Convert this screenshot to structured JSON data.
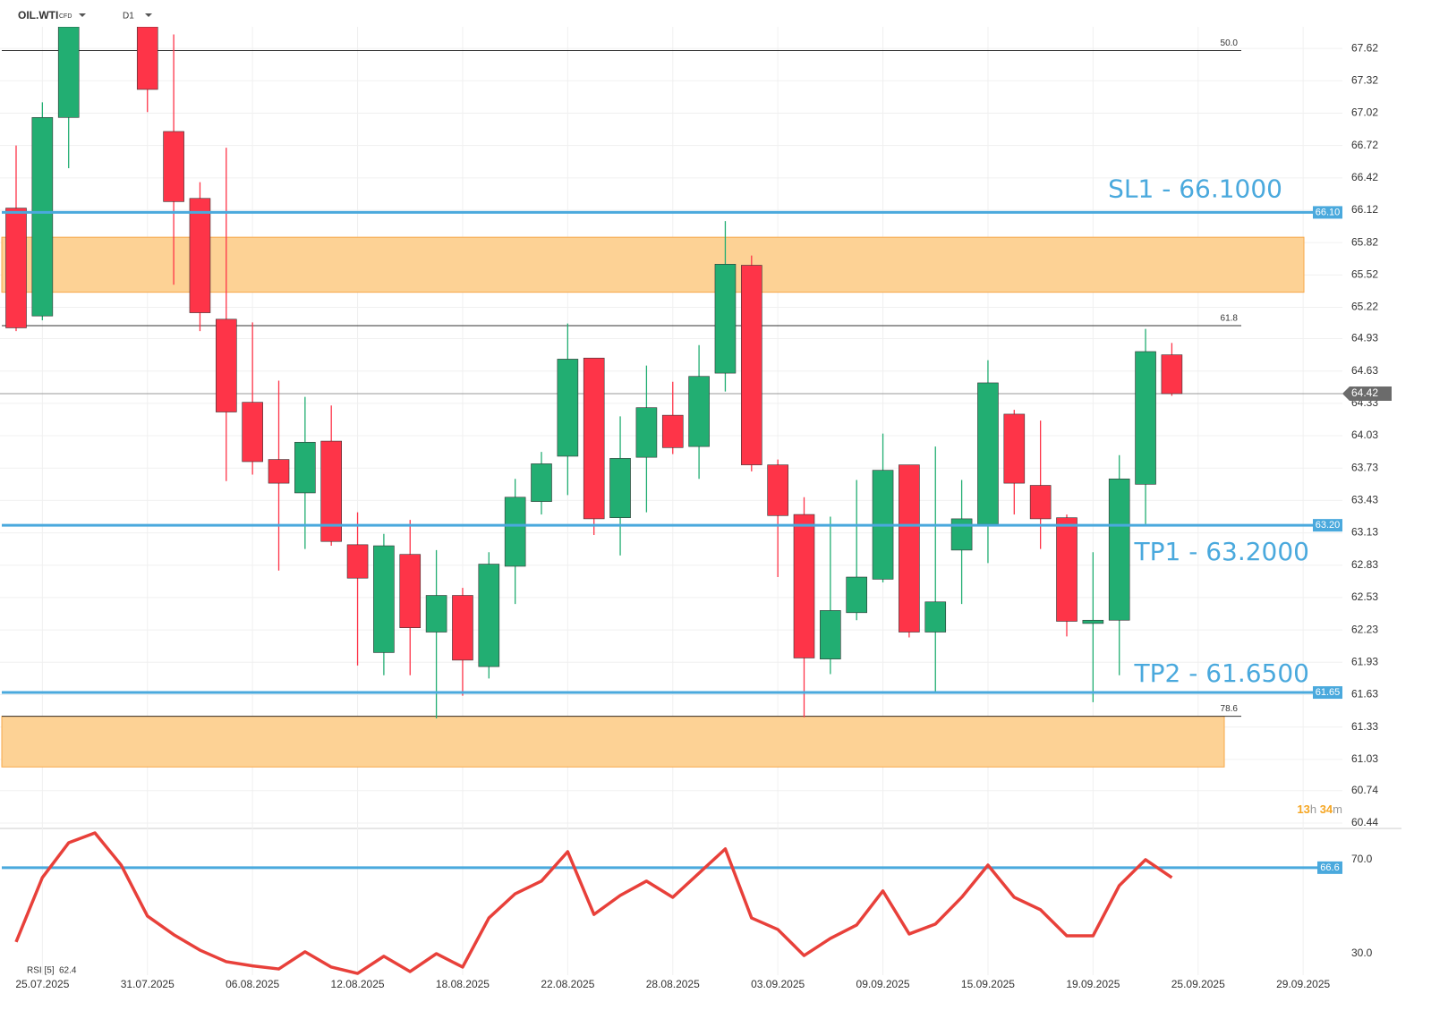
{
  "chart_data": {
    "type": "candlestick",
    "symbol": "OIL.WTI",
    "instrument": "CFD",
    "timeframe": "D1",
    "categories": [
      null,
      "25.07.2025",
      null,
      null,
      null,
      "31.07.2025",
      null,
      null,
      null,
      "06.08.2025",
      null,
      null,
      null,
      "12.08.2025",
      null,
      null,
      null,
      "18.08.2025",
      null,
      null,
      null,
      "22.08.2025",
      null,
      null,
      null,
      "28.08.2025",
      null,
      null,
      null,
      "03.09.2025",
      null,
      null,
      null,
      "09.09.2025",
      null,
      null,
      null,
      "15.09.2025",
      null,
      null,
      null,
      "19.09.2025",
      null,
      null,
      null,
      "25.09.2025",
      null,
      null,
      null,
      "29.09.2025"
    ],
    "open": [
      66.14,
      65.14,
      66.98,
      null,
      null,
      67.82,
      66.85,
      66.23,
      65.11,
      64.34,
      63.81,
      63.5,
      63.98,
      63.02,
      62.02,
      62.93,
      62.21,
      62.55,
      61.89,
      62.82,
      63.42,
      63.84,
      64.75,
      63.27,
      63.83,
      64.22,
      63.93,
      64.61,
      65.61,
      63.76,
      63.3,
      61.96,
      62.39,
      62.7,
      63.76,
      62.21,
      62.97,
      63.21,
      64.23,
      63.57,
      63.27,
      62.29,
      62.32,
      63.58,
      64.78,
      null,
      null,
      null,
      null,
      null
    ],
    "high": [
      66.72,
      67.12,
      67.9,
      null,
      null,
      67.82,
      67.75,
      66.38,
      66.7,
      65.08,
      64.54,
      64.39,
      64.31,
      63.32,
      63.12,
      63.25,
      62.97,
      62.62,
      62.95,
      63.63,
      63.88,
      65.07,
      64.75,
      64.21,
      64.68,
      64.53,
      64.87,
      66.02,
      65.7,
      63.81,
      63.46,
      63.28,
      63.62,
      64.05,
      63.76,
      63.93,
      63.62,
      64.73,
      64.27,
      64.17,
      63.3,
      62.95,
      63.85,
      65.02,
      64.89,
      null,
      null,
      null,
      null,
      null
    ],
    "low": [
      65.0,
      65.1,
      66.51,
      null,
      null,
      67.03,
      65.43,
      65.0,
      63.61,
      63.67,
      62.78,
      62.98,
      63.01,
      61.9,
      61.81,
      61.81,
      61.41,
      61.62,
      61.78,
      62.47,
      63.3,
      63.48,
      63.11,
      62.92,
      63.32,
      63.86,
      63.63,
      64.44,
      63.7,
      62.72,
      61.42,
      61.82,
      62.32,
      62.67,
      62.16,
      61.64,
      62.47,
      62.85,
      63.3,
      62.98,
      62.17,
      61.56,
      61.81,
      63.21,
      64.4,
      null,
      null,
      null,
      null,
      null
    ],
    "close": [
      65.03,
      66.98,
      67.82,
      null,
      null,
      67.24,
      66.2,
      65.17,
      64.25,
      63.79,
      63.59,
      63.97,
      63.05,
      62.71,
      63.01,
      62.25,
      62.55,
      61.95,
      62.84,
      63.46,
      63.77,
      64.74,
      63.26,
      63.82,
      64.29,
      63.92,
      64.58,
      65.62,
      63.76,
      63.29,
      61.97,
      62.41,
      62.72,
      63.71,
      62.21,
      62.49,
      63.26,
      64.52,
      63.59,
      63.26,
      62.31,
      62.32,
      63.63,
      64.81,
      64.42,
      null,
      null,
      null,
      null,
      null
    ],
    "up_color": "#22ae72",
    "down_color": "#fe3448",
    "ylim": [
      60.39,
      67.82
    ],
    "yticks": [
      {
        "value": 67.62,
        "label": "67.62"
      },
      {
        "value": 67.32,
        "label": "67.32"
      },
      {
        "value": 67.02,
        "label": "67.02"
      },
      {
        "value": 66.72,
        "label": "66.72"
      },
      {
        "value": 66.42,
        "label": "66.42"
      },
      {
        "value": 66.12,
        "label": "66.12"
      },
      {
        "value": 65.82,
        "label": "65.82"
      },
      {
        "value": 65.52,
        "label": "65.52"
      },
      {
        "value": 65.22,
        "label": "65.22"
      },
      64.93,
      64.63,
      64.33,
      64.03,
      63.73,
      63.43,
      63.13,
      62.83,
      62.53,
      62.23,
      61.93,
      61.63,
      61.33,
      61.03,
      60.74,
      60.44
    ],
    "grid": true,
    "levels": [
      {
        "value": 66.1,
        "label": "66.10",
        "text": "SL1 - 66.1000"
      },
      {
        "value": 63.2,
        "label": "63.20",
        "text": "TP1 - 63.2000"
      },
      {
        "value": 61.65,
        "label": "61.65",
        "text": "TP2 - 61.6500"
      }
    ],
    "level_color": "#4aa9dd",
    "fibonacci": [
      {
        "value": 67.6,
        "label": "50.0"
      },
      {
        "value": 65.05,
        "label": "61.8"
      },
      {
        "value": 61.43,
        "label": "78.6"
      }
    ],
    "zones": [
      {
        "from": 65.36,
        "to": 65.87
      },
      {
        "from": 60.96,
        "to": 61.43
      }
    ],
    "zone_color": "#fdd08f",
    "current_price": 64.42,
    "timer": {
      "hours": 13,
      "h": "h",
      "minutes": 34,
      "m": "m"
    },
    "rsi": {
      "label": "RSI [5]",
      "values": [
        35.0,
        62.4,
        77.2,
        81.4,
        67.7,
        46.0,
        38.1,
        31.5,
        26.6,
        24.8,
        23.5,
        30.8,
        24.3,
        21.6,
        28.9,
        22.4,
        30.0,
        24.3,
        45.2,
        55.5,
        60.9,
        73.4,
        46.7,
        54.8,
        60.9,
        54.0,
        64.3,
        74.6,
        45.2,
        40.3,
        29.2,
        36.5,
        42.2,
        56.7,
        38.4,
        42.6,
        54.0,
        67.7,
        54.0,
        48.7,
        37.6,
        37.6,
        59.0,
        70.0,
        62.4,
        null,
        null,
        null,
        null,
        null
      ],
      "color": "#e8403a",
      "ylim": [
        20.86,
        83.3
      ],
      "yticks": [
        {
          "value": 70,
          "label": "70.0"
        },
        {
          "value": 30,
          "label": "30.0"
        }
      ],
      "level": 66.6
    }
  }
}
